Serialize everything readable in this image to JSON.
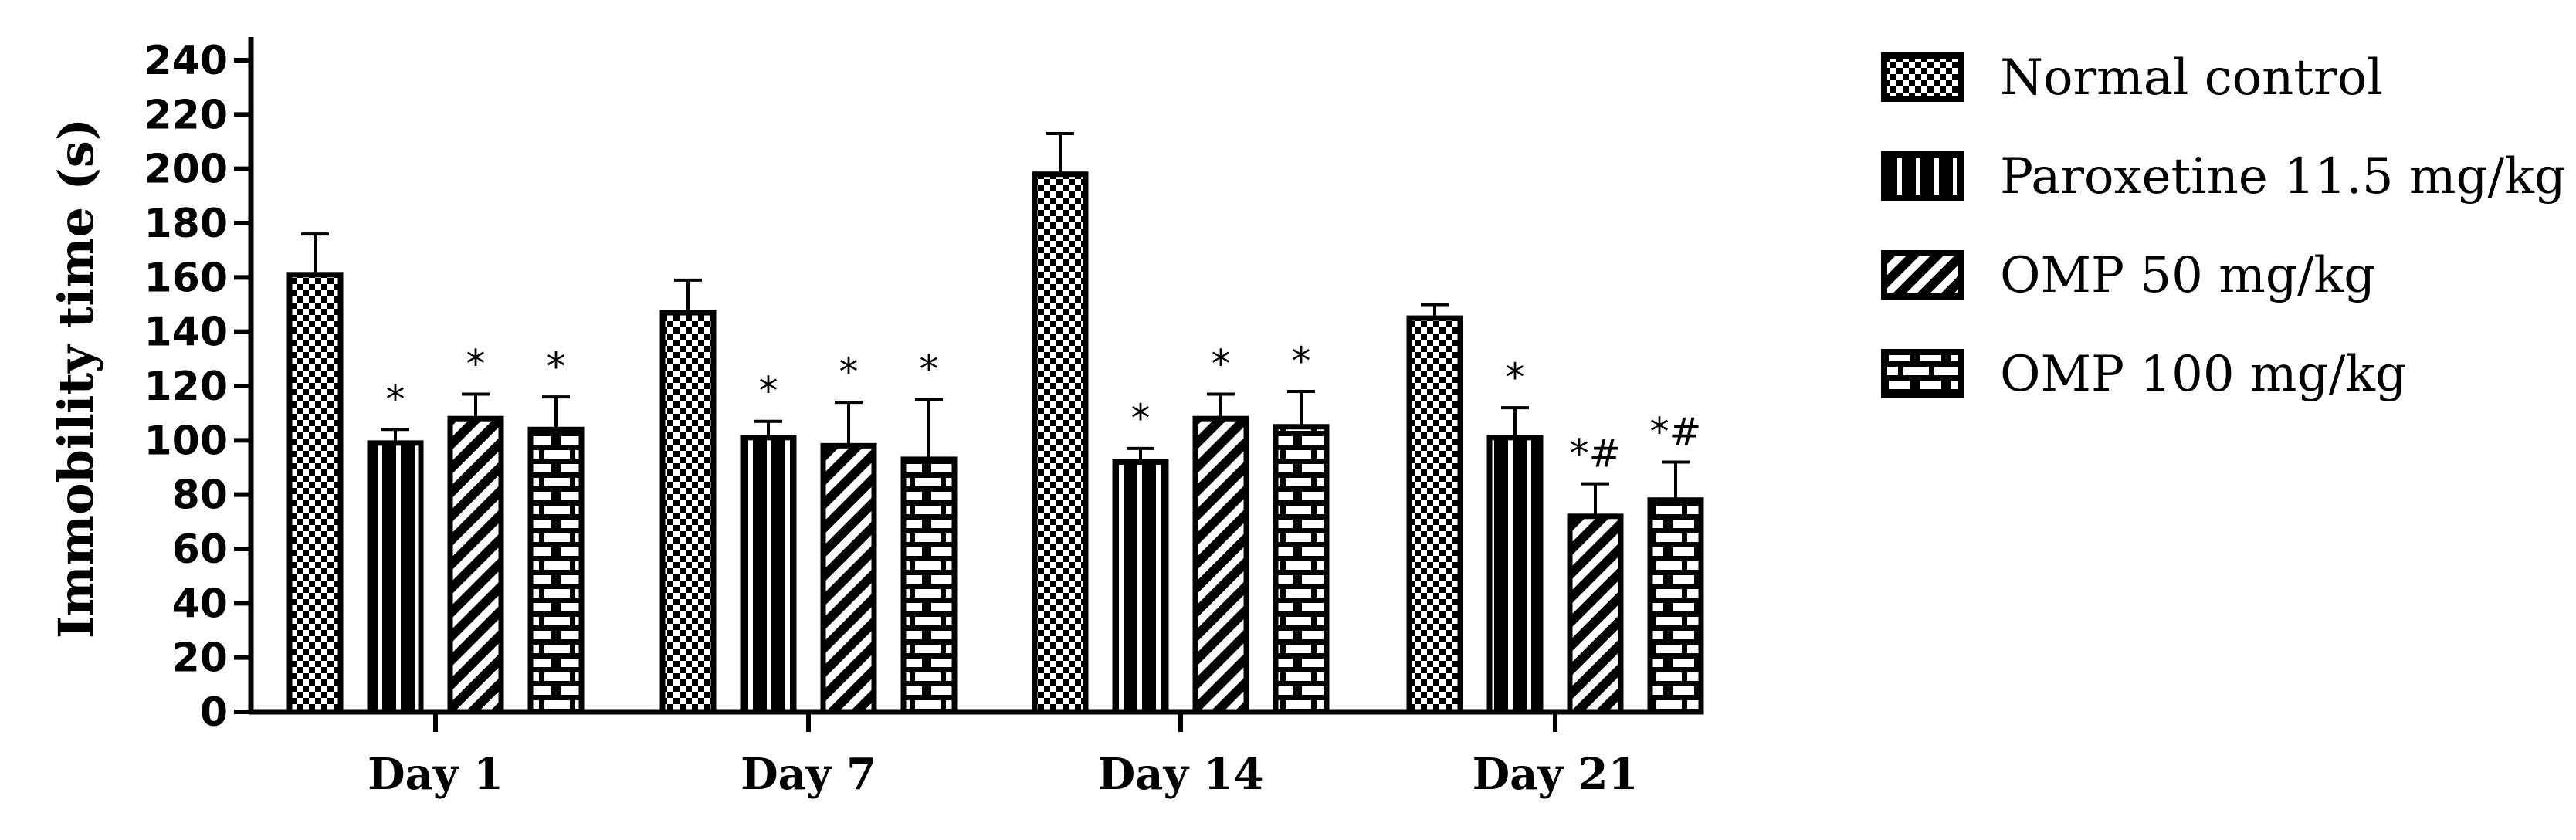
{
  "chart_data": {
    "type": "bar",
    "title": "",
    "xlabel": "",
    "ylabel": "Immobility time (s)",
    "ylim": [
      0,
      240
    ],
    "yticks": [
      0,
      20,
      40,
      60,
      80,
      100,
      120,
      140,
      160,
      180,
      200,
      220,
      240
    ],
    "grid": false,
    "legend_position": "right",
    "categories": [
      "Day 1",
      "Day 7",
      "Day 14",
      "Day 21"
    ],
    "series": [
      {
        "name": "Normal control",
        "pattern": "checker",
        "values": [
          161,
          147,
          198,
          145
        ],
        "errors": [
          15,
          12,
          15,
          5
        ],
        "annotations": [
          "",
          "",
          "",
          ""
        ]
      },
      {
        "name": "Paroxetine 11.5 mg/kg",
        "pattern": "vertical-stripes",
        "values": [
          99,
          101,
          92,
          101
        ],
        "errors": [
          5,
          6,
          5,
          11
        ],
        "annotations": [
          "*",
          "*",
          "*",
          "*"
        ]
      },
      {
        "name": "OMP 50 mg/kg",
        "pattern": "diagonal-stripes",
        "values": [
          108,
          98,
          108,
          72
        ],
        "errors": [
          9,
          16,
          9,
          12
        ],
        "annotations": [
          "*",
          "*",
          "*",
          "*#"
        ]
      },
      {
        "name": "OMP 100 mg/kg",
        "pattern": "bricks",
        "values": [
          104,
          93,
          105,
          78
        ],
        "errors": [
          12,
          22,
          13,
          14
        ],
        "annotations": [
          "*",
          "*",
          "*",
          "*#"
        ]
      }
    ]
  }
}
